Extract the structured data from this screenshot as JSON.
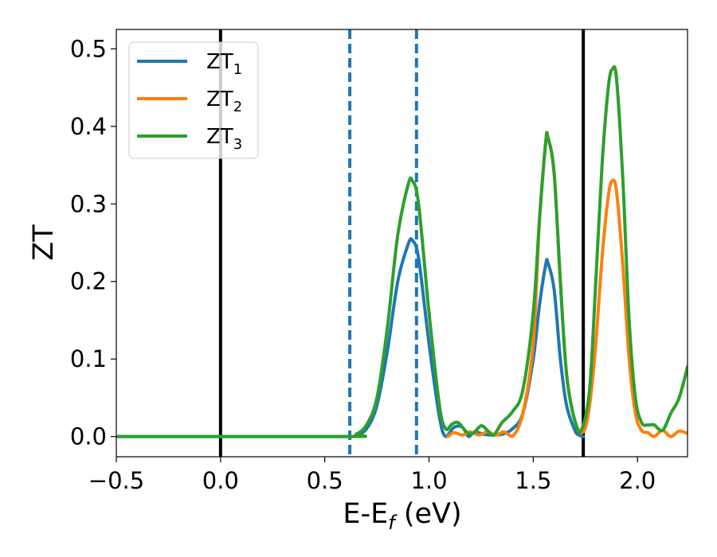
{
  "chart_data": {
    "type": "line",
    "title": "",
    "xlabel": {
      "main": "E-E",
      "sub": "f",
      "unit": " (eV)"
    },
    "ylabel": "ZT",
    "xlim": [
      -0.5,
      2.24
    ],
    "ylim": [
      -0.026,
      0.525
    ],
    "xticks": [
      -0.5,
      0.0,
      0.5,
      1.0,
      1.5,
      2.0
    ],
    "xtick_labels": [
      "−0.5",
      "0.0",
      "0.5",
      "1.0",
      "1.5",
      "2.0"
    ],
    "yticks": [
      0.0,
      0.1,
      0.2,
      0.3,
      0.4,
      0.5
    ],
    "ytick_labels": [
      "0.0",
      "0.1",
      "0.2",
      "0.3",
      "0.4",
      "0.5"
    ],
    "grid": false,
    "legend_position": "upper-left",
    "colors": {
      "ZT1": "#1f77b4",
      "ZT2": "#ff7f0e",
      "ZT3": "#2ca02c"
    },
    "series": [
      {
        "name": "ZT",
        "subscript": "1",
        "color": "#1f77b4",
        "x": [
          -0.5,
          0.6,
          0.65,
          0.7,
          0.75,
          0.8,
          0.85,
          0.9,
          0.92,
          0.95,
          1.0,
          1.05,
          1.08,
          1.12,
          1.16,
          1.19,
          1.22,
          1.26,
          1.3,
          1.35,
          1.4,
          1.45,
          1.5,
          1.53,
          1.56,
          1.57,
          1.6,
          1.63,
          1.66,
          1.7,
          1.72,
          1.74
        ],
        "y": [
          0.0,
          0.0,
          0.002,
          0.01,
          0.04,
          0.11,
          0.2,
          0.248,
          0.253,
          0.23,
          0.12,
          0.025,
          0.0,
          0.012,
          0.012,
          0.0,
          0.006,
          0.003,
          0.002,
          0.003,
          0.01,
          0.03,
          0.1,
          0.17,
          0.222,
          0.224,
          0.19,
          0.1,
          0.04,
          0.008,
          0.002,
          0.0
        ]
      },
      {
        "name": "ZT",
        "subscript": "2",
        "color": "#ff7f0e",
        "x": [
          1.09,
          1.12,
          1.16,
          1.2,
          1.24,
          1.28,
          1.32,
          1.36,
          1.4,
          1.45,
          1.5,
          1.53,
          1.56,
          1.57,
          1.6,
          1.63,
          1.66,
          1.7,
          1.74,
          1.77,
          1.8,
          1.83,
          1.86,
          1.88,
          1.9,
          1.93,
          1.96,
          1.99,
          2.02,
          2.05,
          2.08,
          2.12,
          2.16,
          2.2,
          2.24
        ],
        "y": [
          0.0,
          0.005,
          0.002,
          0.006,
          0.002,
          0.006,
          0.002,
          0.006,
          0.0,
          0.03,
          0.12,
          0.28,
          0.38,
          0.386,
          0.34,
          0.2,
          0.08,
          0.02,
          0.006,
          0.04,
          0.12,
          0.23,
          0.31,
          0.33,
          0.315,
          0.22,
          0.1,
          0.03,
          0.008,
          0.005,
          0.0,
          0.008,
          0.0,
          0.007,
          0.004
        ]
      },
      {
        "name": "ZT",
        "subscript": "3",
        "color": "#2ca02c",
        "x": [
          -0.5,
          0.6,
          0.65,
          0.7,
          0.75,
          0.8,
          0.85,
          0.9,
          0.92,
          0.95,
          1.0,
          1.05,
          1.08,
          1.11,
          1.14,
          1.18,
          1.21,
          1.25,
          1.28,
          1.31,
          1.35,
          1.4,
          1.45,
          1.5,
          1.53,
          1.56,
          1.57,
          1.6,
          1.63,
          1.66,
          1.7,
          1.73,
          1.77,
          1.8,
          1.83,
          1.86,
          1.88,
          1.9,
          1.93,
          1.96,
          1.99,
          2.02,
          2.05,
          2.08,
          2.12,
          2.16,
          2.2,
          2.24
        ],
        "y": [
          0.0,
          0.0,
          0.003,
          0.015,
          0.05,
          0.14,
          0.26,
          0.325,
          0.33,
          0.3,
          0.16,
          0.04,
          0.01,
          0.016,
          0.018,
          0.006,
          0.004,
          0.014,
          0.008,
          0.002,
          0.018,
          0.032,
          0.06,
          0.16,
          0.28,
          0.38,
          0.386,
          0.34,
          0.2,
          0.08,
          0.02,
          0.008,
          0.06,
          0.2,
          0.35,
          0.45,
          0.474,
          0.46,
          0.33,
          0.15,
          0.05,
          0.018,
          0.015,
          0.015,
          0.008,
          0.03,
          0.05,
          0.09
        ]
      }
    ],
    "vlines": [
      {
        "x": 0.0,
        "color": "#000000",
        "style": "solid"
      },
      {
        "x": 0.62,
        "color": "#1f77b4",
        "style": "dashed"
      },
      {
        "x": 0.94,
        "color": "#1f77b4",
        "style": "dashed"
      },
      {
        "x": 1.74,
        "color": "#000000",
        "style": "solid"
      }
    ]
  }
}
